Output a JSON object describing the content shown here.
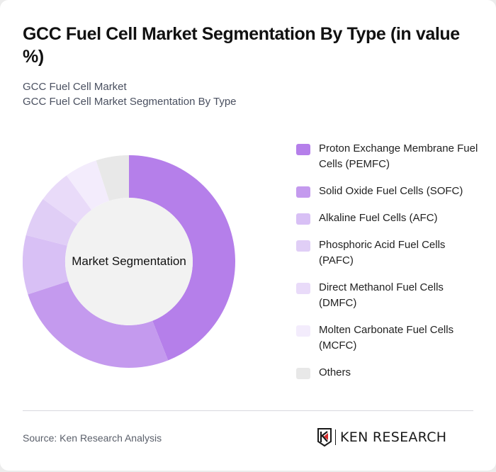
{
  "header": {
    "title": "GCC Fuel Cell Market Segmentation By Type (in value %)",
    "subtitle_1": "GCC Fuel Cell Market",
    "subtitle_2": "GCC Fuel Cell Market Segmentation By Type"
  },
  "chart": {
    "center_label": "Market Segmentation",
    "inner_color": "#f2f2f2"
  },
  "legend": {
    "items": [
      {
        "label": "Proton Exchange Membrane Fuel Cells (PEMFC)",
        "color": "#b57fea"
      },
      {
        "label": "Solid Oxide Fuel Cells (SOFC)",
        "color": "#c49aee"
      },
      {
        "label": "Alkaline Fuel Cells (AFC)",
        "color": "#d8c0f5"
      },
      {
        "label": "Phosphoric Acid Fuel Cells (PAFC)",
        "color": "#e0cef6"
      },
      {
        "label": "Direct Methanol Fuel Cells (DMFC)",
        "color": "#e9dbf9"
      },
      {
        "label": "Molten Carbonate Fuel Cells (MCFC)",
        "color": "#f3ecfc"
      },
      {
        "label": "Others",
        "color": "#e8e8e8"
      }
    ]
  },
  "footer": {
    "source": "Source: Ken Research Analysis",
    "logo_text": "KEN RESEARCH",
    "logo_accent": "#d62d2d"
  },
  "chart_data": {
    "type": "pie",
    "variant": "donut",
    "title": "GCC Fuel Cell Market Segmentation By Type (in value %)",
    "subtitle": "GCC Fuel Cell Market Segmentation By Type",
    "center_label": "Market Segmentation",
    "categories": [
      "Proton Exchange Membrane Fuel Cells (PEMFC)",
      "Solid Oxide Fuel Cells (SOFC)",
      "Alkaline Fuel Cells (AFC)",
      "Phosphoric Acid Fuel Cells (PAFC)",
      "Direct Methanol Fuel Cells (DMFC)",
      "Molten Carbonate Fuel Cells (MCFC)",
      "Others"
    ],
    "values": [
      44,
      26,
      9,
      6,
      5,
      5,
      5
    ],
    "colors": [
      "#b57fea",
      "#c49aee",
      "#d8c0f5",
      "#e0cef6",
      "#e9dbf9",
      "#f3ecfc",
      "#e8e8e8"
    ],
    "unit": "%",
    "legend_position": "right",
    "start_angle": "12 o'clock, clockwise"
  }
}
